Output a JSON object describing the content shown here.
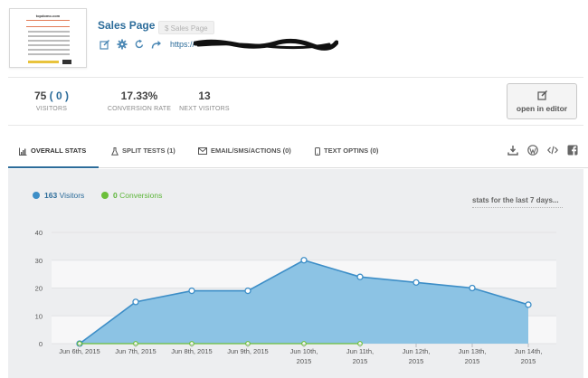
{
  "page": {
    "title": "Sales Page",
    "badge": "$ Sales Page",
    "url": "https://",
    "thumbnail": {
      "brand": "topdomo.com",
      "caption": "Grab Your Exlusive Logo Now for $100"
    }
  },
  "action_icons": [
    "edit-icon",
    "settings-gear-icon",
    "refresh-icon",
    "share-icon"
  ],
  "stats": [
    {
      "value": "75",
      "extra": "( 0 )",
      "label": "VISITORS"
    },
    {
      "value": "17.33%",
      "extra": "",
      "label": "CONVERSION RATE"
    },
    {
      "value": "13",
      "extra": "",
      "label": "NEXT VISITORS"
    }
  ],
  "editor_button": "open in editor",
  "tabs": [
    {
      "label": "OVERALL STATS",
      "icon": "bar-chart-icon",
      "active": true
    },
    {
      "label": "SPLIT TESTS (1)",
      "icon": "flask-icon",
      "active": false
    },
    {
      "label": "EMAIL/SMS/ACTIONS (0)",
      "icon": "envelope-icon",
      "active": false
    },
    {
      "label": "TEXT OPTINS (0)",
      "icon": "mobile-icon",
      "active": false
    }
  ],
  "tab_tools": [
    "download-icon",
    "wordpress-icon",
    "code-icon",
    "facebook-icon"
  ],
  "legend": {
    "visitors_count": "163",
    "visitors_label": "Visitors",
    "conversions_count": "0",
    "conversions_label": "Conversions"
  },
  "range_text": "stats for the last 7 days...",
  "colors": {
    "accent": "#2c6c9a",
    "visitors": "#3d8ec7",
    "visitors_fill": "#8cc3e4",
    "conversions": "#6cbf3a"
  },
  "chart_data": {
    "type": "area",
    "x": [
      "Jun 6th, 2015",
      "Jun 7th, 2015",
      "Jun 8th, 2015",
      "Jun 9th, 2015",
      "Jun 10th, 2015",
      "Jun 11th, 2015",
      "Jun 12th, 2015",
      "Jun 13th, 2015",
      "Jun 14th, 2015"
    ],
    "x_tick_lines": [
      [
        "Jun 6th, 2015"
      ],
      [
        "Jun 7th, 2015"
      ],
      [
        "Jun 8th, 2015"
      ],
      [
        "Jun 9th, 2015"
      ],
      [
        "Jun 10th,",
        "2015"
      ],
      [
        "Jun 11th,",
        "2015"
      ],
      [
        "Jun 12th,",
        "2015"
      ],
      [
        "Jun 13th,",
        "2015"
      ],
      [
        "Jun 14th,",
        "2015"
      ]
    ],
    "series": [
      {
        "name": "Visitors",
        "values": [
          0,
          15,
          19,
          19,
          30,
          24,
          22,
          20,
          14
        ]
      },
      {
        "name": "Conversions",
        "values": [
          0,
          0,
          0,
          0,
          0,
          0,
          null,
          null,
          null
        ]
      }
    ],
    "ylim": [
      0,
      40
    ],
    "yticks": [
      0,
      10,
      20,
      30,
      40
    ],
    "grid": true
  }
}
